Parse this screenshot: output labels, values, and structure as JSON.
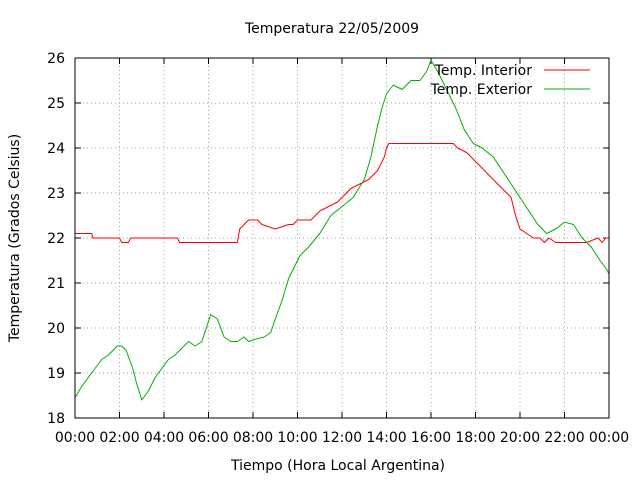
{
  "chart_data": {
    "type": "line",
    "title": "Temperatura 22/05/2009",
    "xlabel": "Tiempo (Hora Local Argentina)",
    "ylabel": "Temperatura (Grados Celsius)",
    "xlim": [
      0,
      24
    ],
    "ylim": [
      18,
      26
    ],
    "grid": true,
    "legend_position": "top-right",
    "x_ticks": [
      "00:00",
      "02:00",
      "04:00",
      "06:00",
      "08:00",
      "10:00",
      "12:00",
      "14:00",
      "16:00",
      "18:00",
      "20:00",
      "22:00",
      "00:00"
    ],
    "y_ticks": [
      "18",
      "19",
      "20",
      "21",
      "22",
      "23",
      "24",
      "25",
      "26"
    ],
    "series": [
      {
        "name": "Temp. Interior",
        "color": "#ff0000",
        "x": [
          0,
          0.75,
          0.8,
          2.0,
          2.1,
          2.4,
          2.5,
          4.6,
          4.7,
          7.3,
          7.4,
          7.6,
          7.8,
          8.2,
          8.4,
          9.0,
          9.6,
          9.8,
          10.0,
          10.6,
          11.0,
          11.4,
          11.8,
          12.0,
          12.4,
          12.8,
          13.2,
          13.6,
          13.9,
          14.0,
          14.1,
          15.0,
          16.0,
          17.0,
          17.2,
          17.6,
          18.0,
          18.4,
          18.8,
          19.2,
          19.6,
          19.8,
          20.0,
          20.3,
          20.6,
          20.9,
          21.1,
          21.3,
          21.6,
          22.0,
          23.0,
          23.5,
          23.7,
          23.85,
          24.0
        ],
        "y": [
          22.1,
          22.1,
          22.0,
          22.0,
          21.9,
          21.9,
          22.0,
          22.0,
          21.9,
          21.9,
          22.2,
          22.3,
          22.4,
          22.4,
          22.3,
          22.2,
          22.3,
          22.3,
          22.4,
          22.4,
          22.6,
          22.7,
          22.8,
          22.9,
          23.1,
          23.2,
          23.3,
          23.5,
          23.8,
          24.0,
          24.1,
          24.1,
          24.1,
          24.1,
          24.0,
          23.9,
          23.7,
          23.5,
          23.3,
          23.1,
          22.9,
          22.5,
          22.2,
          22.1,
          22.0,
          22.0,
          21.9,
          22.0,
          21.9,
          21.9,
          21.9,
          22.0,
          21.9,
          22.0,
          22.0
        ]
      },
      {
        "name": "Temp. Exterior",
        "color": "#00b000",
        "x": [
          0,
          0.3,
          0.6,
          0.9,
          1.2,
          1.5,
          1.9,
          2.1,
          2.3,
          2.6,
          2.75,
          3.0,
          3.3,
          3.6,
          3.9,
          4.2,
          4.5,
          4.9,
          5.1,
          5.4,
          5.7,
          5.9,
          6.1,
          6.4,
          6.7,
          7.0,
          7.3,
          7.6,
          7.8,
          8.1,
          8.5,
          8.8,
          9.0,
          9.3,
          9.6,
          9.9,
          10.1,
          10.5,
          11.0,
          11.5,
          12.0,
          12.5,
          13.0,
          13.3,
          13.6,
          13.8,
          14.0,
          14.3,
          14.7,
          15.1,
          15.5,
          15.8,
          16.0,
          16.3,
          16.7,
          17.1,
          17.5,
          17.9,
          18.3,
          18.8,
          19.2,
          19.6,
          20.0,
          20.4,
          20.8,
          21.2,
          21.6,
          22.0,
          22.4,
          22.8,
          23.2,
          23.6,
          23.9,
          24.0
        ],
        "y": [
          18.45,
          18.7,
          18.9,
          19.1,
          19.3,
          19.4,
          19.6,
          19.6,
          19.5,
          19.1,
          18.8,
          18.4,
          18.6,
          18.9,
          19.1,
          19.3,
          19.4,
          19.6,
          19.7,
          19.6,
          19.7,
          20.0,
          20.3,
          20.2,
          19.8,
          19.7,
          19.7,
          19.8,
          19.7,
          19.75,
          19.8,
          19.9,
          20.2,
          20.6,
          21.1,
          21.4,
          21.6,
          21.8,
          22.1,
          22.5,
          22.7,
          22.9,
          23.3,
          23.8,
          24.5,
          24.9,
          25.2,
          25.4,
          25.3,
          25.5,
          25.5,
          25.7,
          25.95,
          25.7,
          25.3,
          24.9,
          24.4,
          24.1,
          24.0,
          23.8,
          23.5,
          23.2,
          22.9,
          22.6,
          22.3,
          22.1,
          22.2,
          22.35,
          22.3,
          22.0,
          21.8,
          21.5,
          21.3,
          21.2
        ]
      }
    ]
  }
}
